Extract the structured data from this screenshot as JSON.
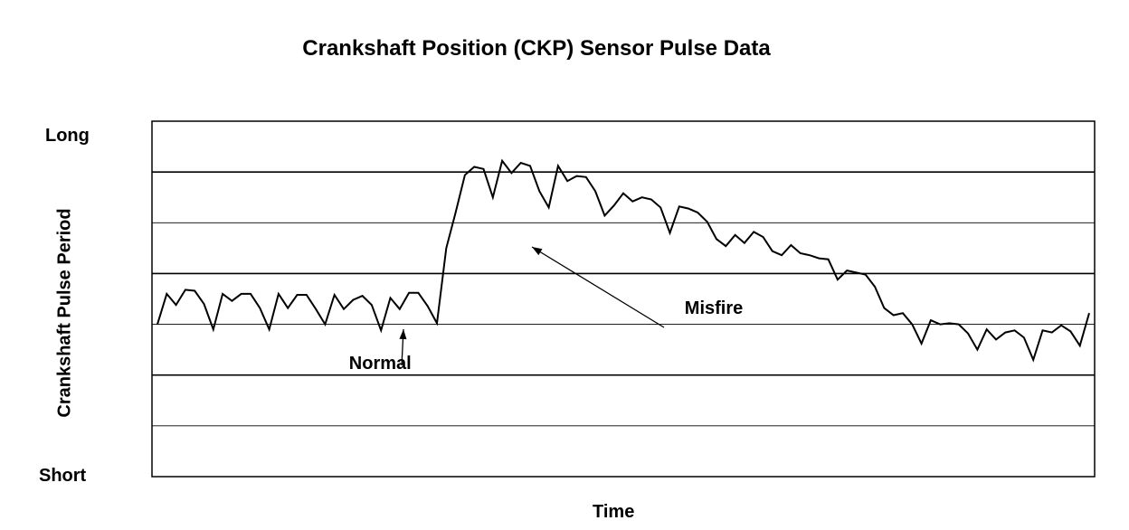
{
  "chart_data": {
    "type": "line",
    "title": "Crankshaft Position (CKP) Sensor Pulse Data",
    "xlabel": "Time",
    "ylabel": "Crankshaft Pulse Period",
    "y_tick_labels": {
      "top": "Long",
      "bottom": "Short"
    },
    "ylim": [
      0,
      7
    ],
    "xlim": [
      0,
      100
    ],
    "grid": true,
    "line_color": "#000000",
    "series": [
      {
        "x": [
          0,
          1,
          2,
          3,
          4,
          5,
          6,
          7,
          8,
          9,
          10,
          11,
          12,
          13,
          14,
          15,
          16,
          17,
          18,
          19,
          20,
          21,
          22,
          23,
          24,
          25,
          26,
          27,
          28,
          29,
          30,
          31,
          32,
          33,
          34,
          35,
          36,
          37,
          38,
          39,
          40,
          41,
          42,
          43,
          44,
          45,
          46,
          47,
          48,
          49,
          50,
          51,
          52,
          53,
          54,
          55,
          56,
          57,
          58,
          59,
          60,
          61,
          62,
          63,
          64,
          65,
          66,
          67,
          68,
          69,
          70,
          71,
          72,
          73,
          74,
          75,
          76,
          77,
          78,
          79,
          80,
          81,
          82,
          83,
          84,
          85,
          86,
          87,
          88,
          89,
          90,
          91,
          92,
          93,
          94,
          95,
          96,
          97,
          98,
          99,
          100
        ],
        "values": [
          3.0,
          3.6,
          3.38,
          3.68,
          3.66,
          3.4,
          2.9,
          3.6,
          3.46,
          3.6,
          3.6,
          3.32,
          2.9,
          3.6,
          3.32,
          3.58,
          3.58,
          3.3,
          3.0,
          3.58,
          3.3,
          3.48,
          3.56,
          3.38,
          2.88,
          3.52,
          3.3,
          3.62,
          3.62,
          3.36,
          3.02,
          4.5,
          5.2,
          5.94,
          6.1,
          6.06,
          5.5,
          6.22,
          5.98,
          6.18,
          6.12,
          5.62,
          5.3,
          6.12,
          5.82,
          5.92,
          5.9,
          5.62,
          5.14,
          5.34,
          5.58,
          5.42,
          5.5,
          5.46,
          5.3,
          4.8,
          5.32,
          5.28,
          5.2,
          5.02,
          4.68,
          4.54,
          4.76,
          4.6,
          4.82,
          4.72,
          4.44,
          4.36,
          4.56,
          4.4,
          4.36,
          4.3,
          4.28,
          3.88,
          4.06,
          4.02,
          3.98,
          3.74,
          3.32,
          3.18,
          3.22,
          3.0,
          2.62,
          3.08,
          3.0,
          3.02,
          3.0,
          2.82,
          2.5,
          2.9,
          2.7,
          2.84,
          2.88,
          2.74,
          2.3,
          2.88,
          2.84,
          2.98,
          2.86,
          2.58,
          3.22
        ]
      }
    ],
    "annotations": [
      {
        "text": "Normal",
        "x": 26,
        "y": 2.2
      },
      {
        "text": "Misfire",
        "x": 56,
        "y": 3.3
      }
    ]
  }
}
